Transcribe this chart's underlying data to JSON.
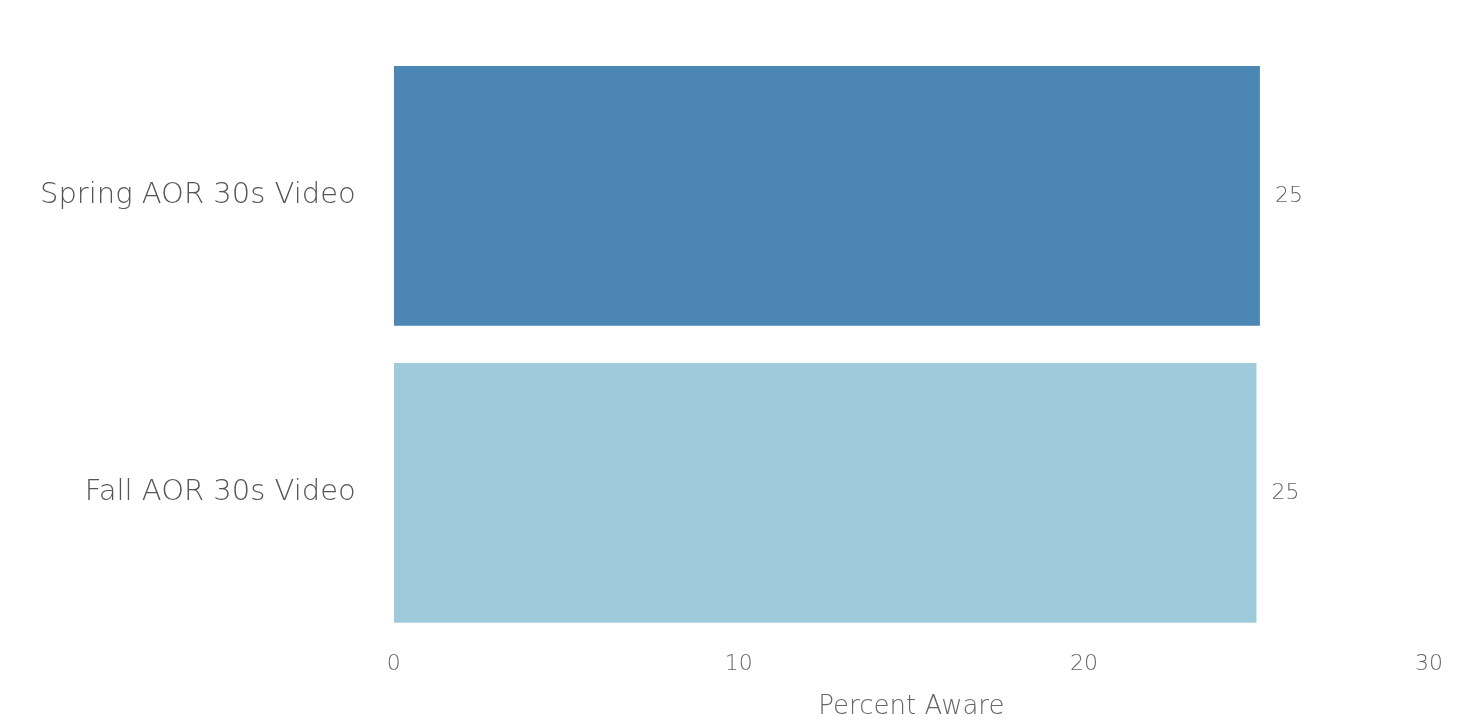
{
  "chart_data": {
    "type": "bar",
    "orientation": "horizontal",
    "categories": [
      "Spring AOR 30s Video",
      "Fall AOR 30s Video"
    ],
    "values": [
      25.1,
      25.0
    ],
    "value_labels": [
      "25",
      "25"
    ],
    "colors": [
      "#4b86b4",
      "#9ecadb"
    ],
    "xlabel": "Percent Aware",
    "xlim": [
      0,
      30
    ],
    "xticks": [
      0,
      10,
      20,
      30
    ],
    "grid": false,
    "legend": false
  }
}
